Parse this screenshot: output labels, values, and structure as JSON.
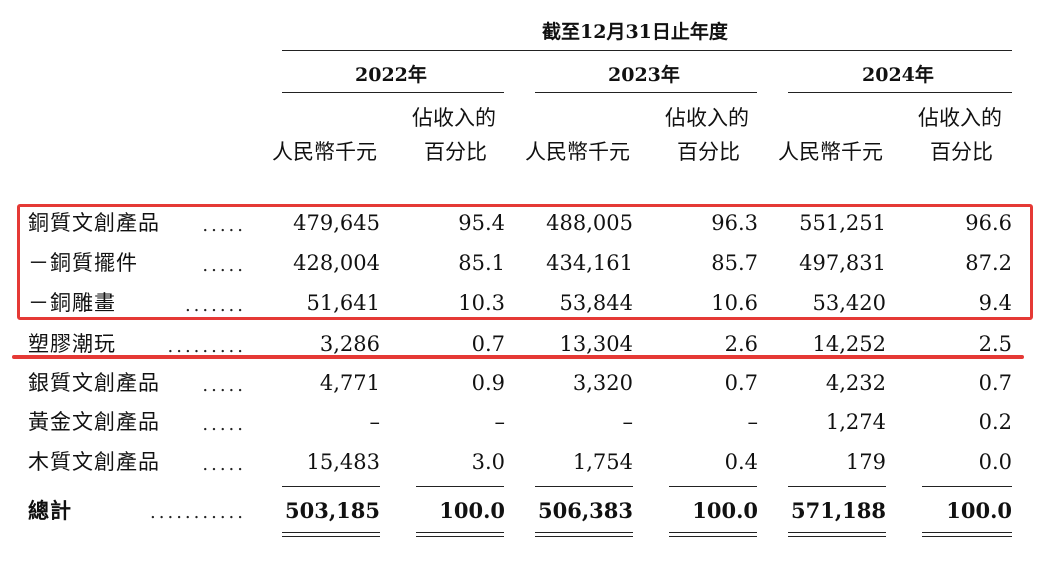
{
  "header": {
    "period": "截至12月31日止年度",
    "years": [
      "2022年",
      "2023年",
      "2024年"
    ],
    "col_amount": "人民幣千元",
    "col_pct_line1": "佔收入的",
    "col_pct_line2": "百分比"
  },
  "rows": [
    {
      "label": "銅質文創產品",
      "dots": ".....",
      "v2022": "479,645",
      "p2022": "95.4",
      "v2023": "488,005",
      "p2023": "96.3",
      "v2024": "551,251",
      "p2024": "96.6"
    },
    {
      "label": "－銅質擺件",
      "dots": ".....",
      "v2022": "428,004",
      "p2022": "85.1",
      "v2023": "434,161",
      "p2023": "85.7",
      "v2024": "497,831",
      "p2024": "87.2"
    },
    {
      "label": "－銅雕畫",
      "dots": ".......",
      "v2022": "51,641",
      "p2022": "10.3",
      "v2023": "53,844",
      "p2023": "10.6",
      "v2024": "53,420",
      "p2024": "9.4"
    },
    {
      "label": "塑膠潮玩",
      "dots": ".........",
      "v2022": "3,286",
      "p2022": "0.7",
      "v2023": "13,304",
      "p2023": "2.6",
      "v2024": "14,252",
      "p2024": "2.5"
    },
    {
      "label": "銀質文創產品",
      "dots": ".....",
      "v2022": "4,771",
      "p2022": "0.9",
      "v2023": "3,320",
      "p2023": "0.7",
      "v2024": "4,232",
      "p2024": "0.7"
    },
    {
      "label": "黃金文創產品",
      "dots": ".....",
      "v2022": "–",
      "p2022": "–",
      "v2023": "–",
      "p2023": "–",
      "v2024": "1,274",
      "p2024": "0.2"
    },
    {
      "label": "木質文創產品",
      "dots": ".....",
      "v2022": "15,483",
      "p2022": "3.0",
      "v2023": "1,754",
      "p2023": "0.4",
      "v2024": "179",
      "p2024": "0.0"
    }
  ],
  "total": {
    "label": "總計",
    "dots": "...........",
    "v2022": "503,185",
    "p2022": "100.0",
    "v2023": "506,383",
    "p2023": "100.0",
    "v2024": "571,188",
    "p2024": "100.0"
  },
  "highlight_color": "#e53935"
}
